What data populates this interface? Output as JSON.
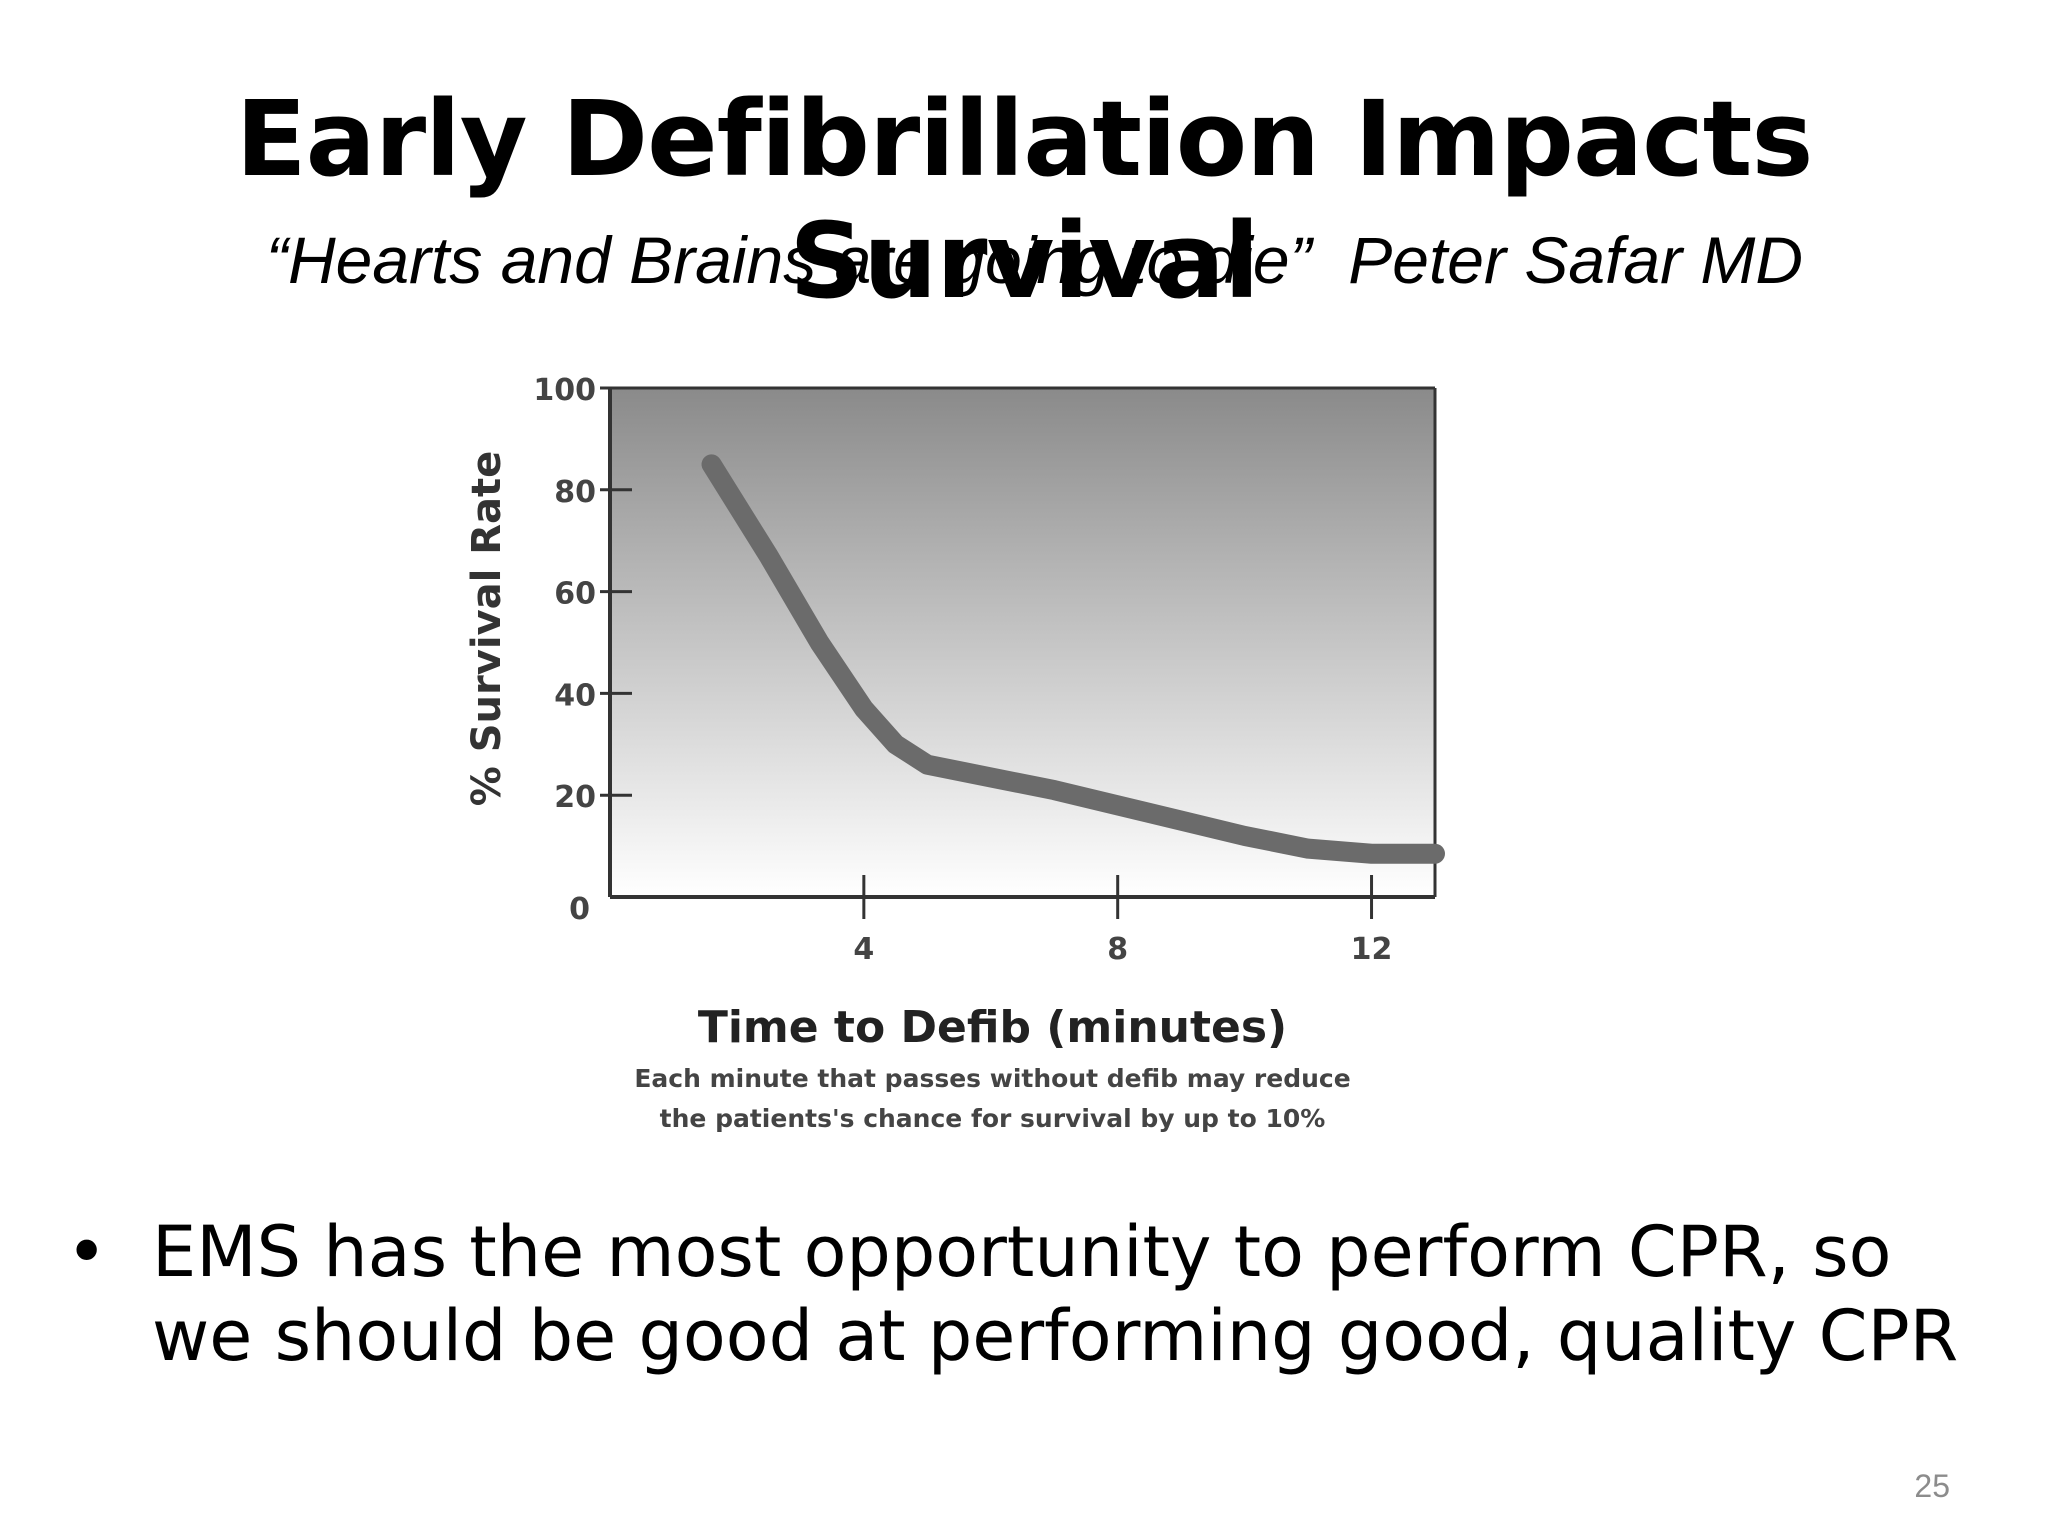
{
  "slide": {
    "title": "Early Defibrillation Impacts Survival",
    "quote": "“Hearts and Brains are going to die”  Peter Safar MD",
    "bullet_marker": "•",
    "bullet_text": "EMS has the most opportunity to perform CPR, so we should be good at performing good, quality CPR",
    "page_number": "25"
  },
  "chart_data": {
    "type": "line",
    "title": "",
    "xlabel": "Time to Defib (minutes)",
    "ylabel": "% Survival Rate",
    "xlim": [
      0,
      13
    ],
    "ylim": [
      0,
      100
    ],
    "x_ticks": [
      4,
      8,
      12
    ],
    "x_tick_labels": [
      "4",
      "8",
      "12"
    ],
    "y_ticks": [
      0,
      20,
      40,
      60,
      80,
      100
    ],
    "y_tick_labels": [
      "0",
      "20",
      "40",
      "60",
      "80",
      "100"
    ],
    "grid": false,
    "legend": "none",
    "series": [
      {
        "x": [
          1.6,
          2.5,
          3.3,
          4.0,
          4.5,
          5.0,
          6.0,
          7.0,
          8.0,
          9.0,
          10.0,
          11.0,
          12.0,
          13.0
        ],
        "y": [
          85,
          67,
          50,
          37,
          30,
          26,
          23.5,
          21,
          18,
          15,
          12,
          9.5,
          8.5,
          8.5
        ]
      }
    ],
    "caption_lines": [
      "Each minute that passes without defib may reduce",
      "the patients's chance for survival by up to 10%"
    ],
    "colors": {
      "line": "#6b6b6b",
      "plot_top": "#8a8a8a",
      "plot_bottom": "#ffffff",
      "axis": "#333333"
    }
  }
}
